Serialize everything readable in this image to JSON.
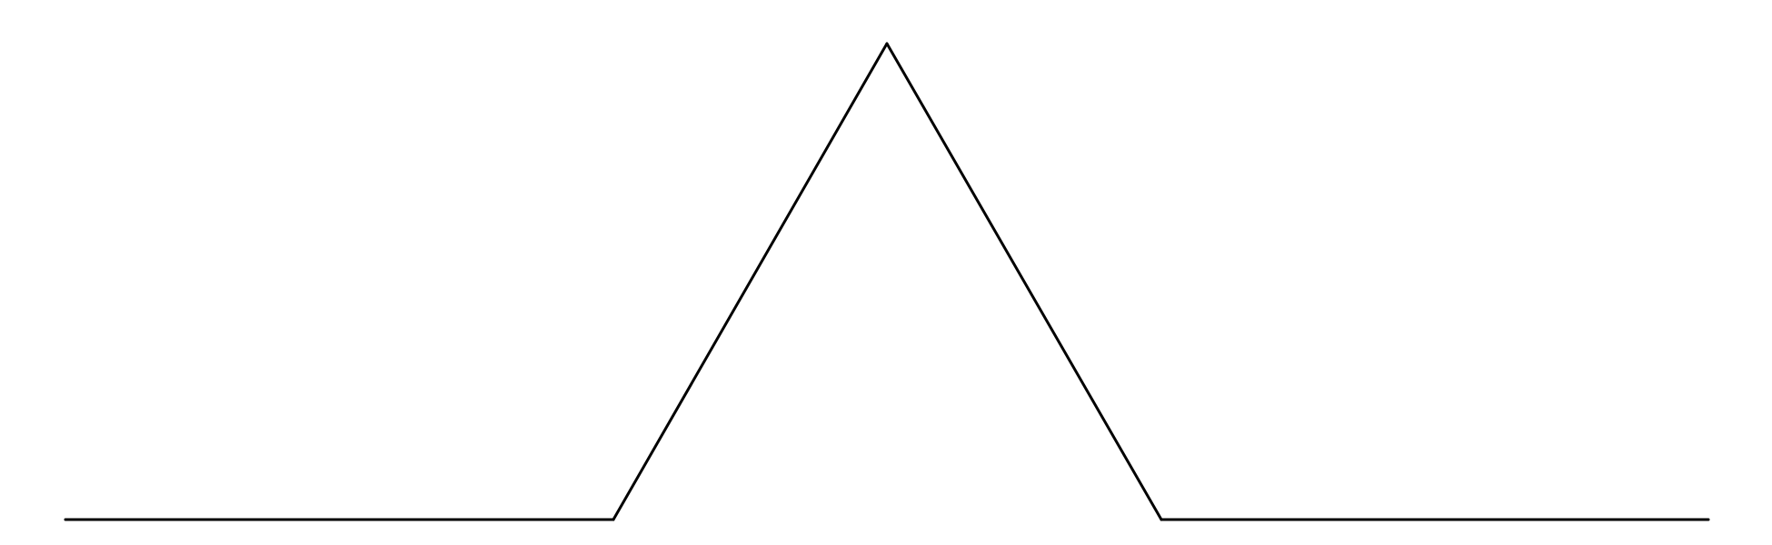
{
  "diagram": {
    "type": "polyline",
    "stroke_color": "#000000",
    "background_color": "#ffffff",
    "segments": [
      {
        "name": "baseline-left"
      },
      {
        "name": "ascending-side"
      },
      {
        "name": "descending-side"
      },
      {
        "name": "baseline-right"
      }
    ]
  }
}
